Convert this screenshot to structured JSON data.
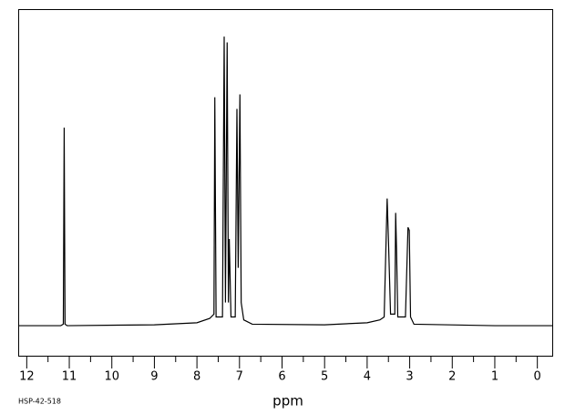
{
  "chart_data": {
    "type": "line",
    "xlabel": "ppm",
    "caption": "HSP-42-518",
    "x": [
      12.2,
      11.2,
      11.14,
      11.12,
      11.1,
      11.05,
      9,
      8,
      7.7,
      7.6,
      7.58,
      7.55,
      7.4,
      7.36,
      7.33,
      7.29,
      7.26,
      7.24,
      7.2,
      7.1,
      7.06,
      7.03,
      6.99,
      6.96,
      6.9,
      6.7,
      5,
      4,
      3.7,
      3.6,
      3.53,
      3.5,
      3.45,
      3.35,
      3.33,
      3.31,
      3.28,
      3.1,
      3.04,
      3.01,
      2.98,
      2.9,
      1,
      -0.35
    ],
    "values": [
      0,
      0,
      0.5,
      68.5,
      0.5,
      0,
      0.3,
      1,
      2.5,
      4,
      79,
      3,
      3,
      100,
      8,
      98,
      8,
      30,
      3,
      3,
      75,
      20,
      80,
      8,
      2,
      0.5,
      0.3,
      1,
      2,
      3,
      44,
      30,
      4,
      4,
      39,
      27,
      3,
      3,
      34,
      33,
      3,
      0.5,
      0,
      0
    ],
    "color": "#000000",
    "xlim": [
      12.2,
      -0.35
    ],
    "ylim": [
      -10.4,
      109.5
    ],
    "xticks": [
      12,
      11,
      10,
      9,
      8,
      7,
      6,
      5,
      4,
      3,
      2,
      1,
      0
    ],
    "xminorticks": [
      11.5,
      10.5,
      9.5,
      8.5,
      7.5,
      6.5,
      5.5,
      4.5,
      3.5,
      2.5,
      1.5,
      0.5
    ]
  }
}
